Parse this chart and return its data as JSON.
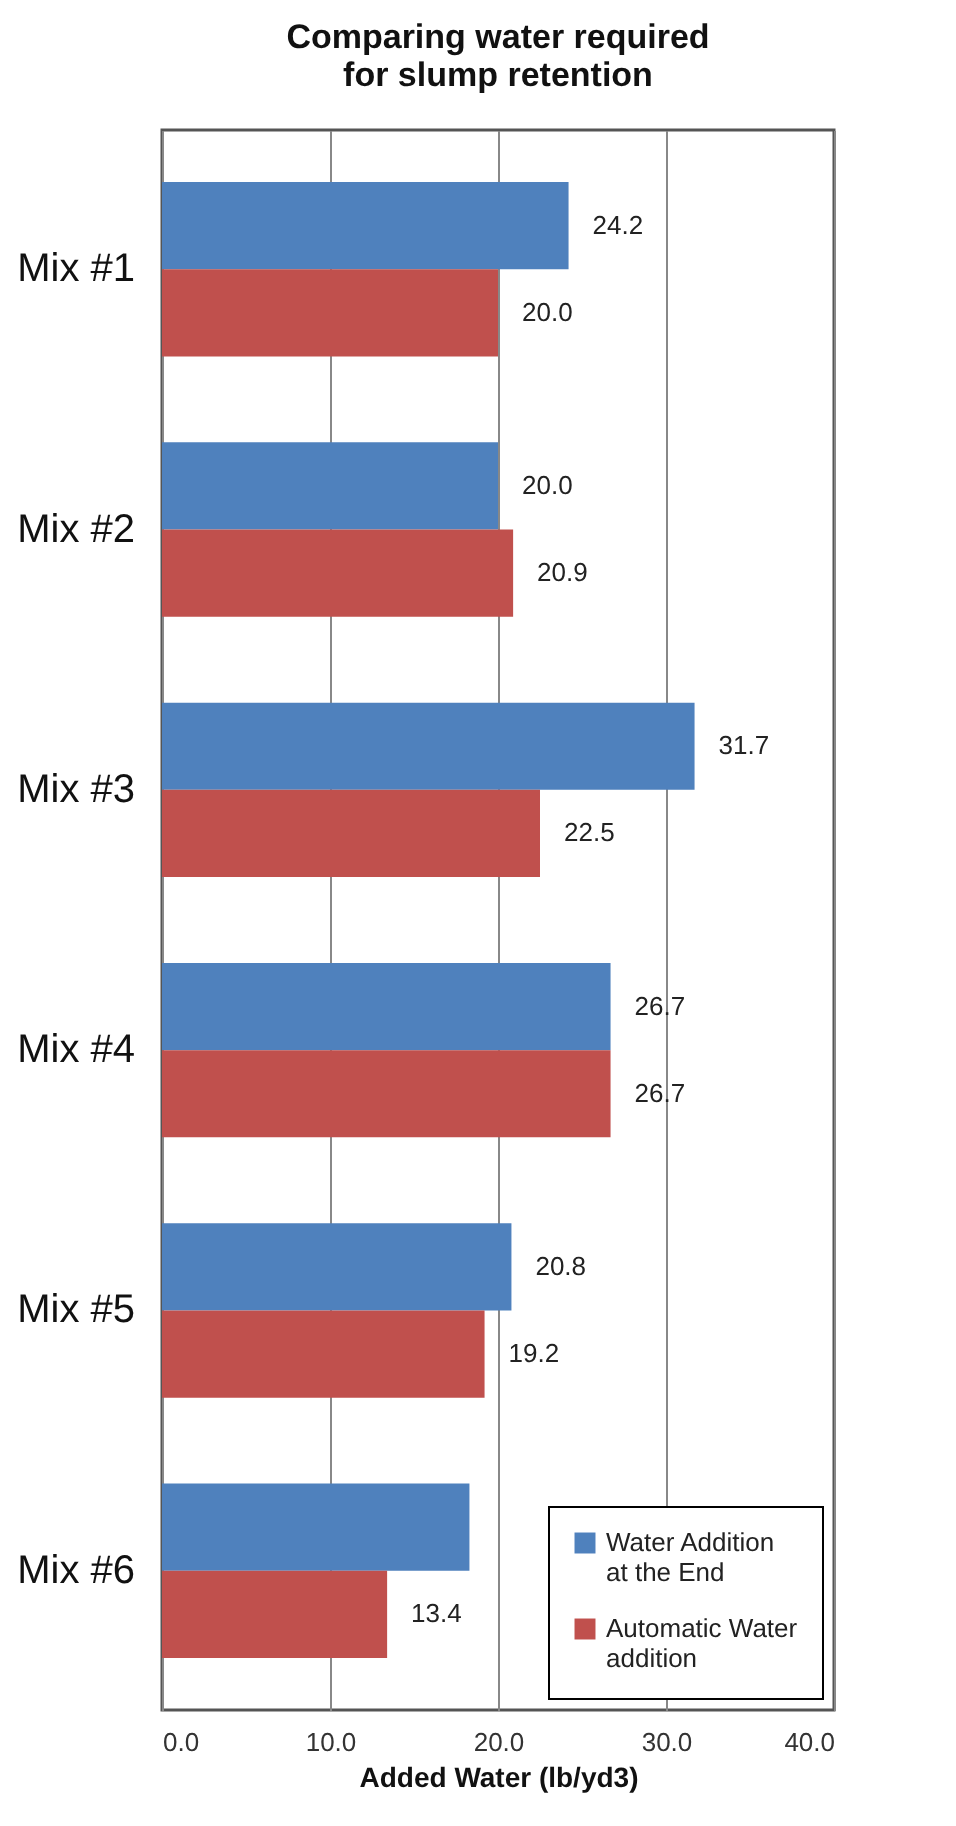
{
  "chart_data": {
    "type": "bar",
    "orientation": "horizontal",
    "title": "Comparing water required for slump retention",
    "xlabel": "Added Water (lb/yd3)",
    "categories": [
      "Mix #1",
      "Mix #2",
      "Mix #3",
      "Mix #4",
      "Mix #5",
      "Mix #6"
    ],
    "series": [
      {
        "name": "Water Addition at the End",
        "color": "#4f81bd",
        "values": [
          24.2,
          20.0,
          31.7,
          26.7,
          20.8,
          18.3
        ],
        "value_labels": [
          "24.2",
          "20.0",
          "31.7",
          "26.7",
          "20.8",
          null
        ]
      },
      {
        "name": "Automatic Water addition",
        "color": "#c0504d",
        "values": [
          20.0,
          20.9,
          22.5,
          26.7,
          19.2,
          13.4
        ],
        "value_labels": [
          "20.0",
          "20.9",
          "22.5",
          "26.7",
          "19.2",
          "13.4"
        ]
      }
    ],
    "xlim": [
      0,
      40
    ],
    "xticks": [
      {
        "value": 0,
        "label": "0.0"
      },
      {
        "value": 10,
        "label": "10.0"
      },
      {
        "value": 20,
        "label": "20.0"
      },
      {
        "value": 30,
        "label": "30.0"
      },
      {
        "value": 40,
        "label": "40.0"
      }
    ],
    "grid": "x",
    "legend": "bottom right"
  }
}
